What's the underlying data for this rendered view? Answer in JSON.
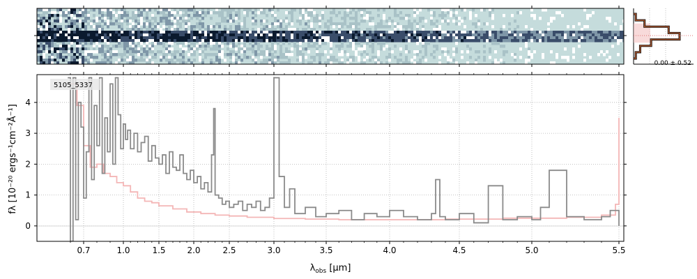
{
  "chart_data": [
    {
      "type": "heatmap",
      "panel": "2d-spectrum",
      "background_color": "#c5dcdc",
      "trace_color": "#0b1a2e",
      "bright_features_um": [
        2.28,
        3.0,
        0.92
      ]
    },
    {
      "type": "line",
      "panel": "1d-spectrum",
      "label": "5105_5337",
      "xlabel": "λobs [μm]",
      "ylabel": "fλ [10⁻²⁰ ergs⁻¹cm⁻²Å⁻¹]",
      "x_ticks": [
        0.7,
        1.0,
        1.5,
        2.0,
        2.5,
        3.0,
        3.5,
        4.0,
        4.5,
        5.0,
        5.5
      ],
      "x_tick_labels": [
        "0.7",
        "1.0",
        "1.5",
        "2.0",
        "2.5",
        "3.0",
        "3.5",
        "4.0",
        "4.5",
        "5.0",
        "5.5"
      ],
      "y_ticks": [
        0,
        1,
        2,
        3,
        4
      ],
      "y_tick_labels": [
        "0",
        "1",
        "2",
        "3",
        "4"
      ],
      "ylim": [
        -0.5,
        4.9
      ],
      "xlim_um": [
        0.55,
        5.52
      ],
      "grid": true,
      "series": [
        {
          "role": "flux",
          "color": "#8a8a8a",
          "x": [
            0.58,
            0.6,
            0.62,
            0.64,
            0.66,
            0.68,
            0.7,
            0.72,
            0.74,
            0.76,
            0.78,
            0.8,
            0.82,
            0.84,
            0.86,
            0.88,
            0.9,
            0.92,
            0.94,
            0.96,
            0.98,
            1.0,
            1.03,
            1.06,
            1.1,
            1.15,
            1.2,
            1.25,
            1.3,
            1.35,
            1.4,
            1.45,
            1.5,
            1.55,
            1.6,
            1.65,
            1.7,
            1.75,
            1.8,
            1.85,
            1.9,
            1.95,
            2.0,
            2.05,
            2.1,
            2.15,
            2.2,
            2.25,
            2.28,
            2.3,
            2.35,
            2.4,
            2.45,
            2.5,
            2.55,
            2.6,
            2.65,
            2.7,
            2.75,
            2.8,
            2.85,
            2.9,
            2.95,
            3.0,
            3.05,
            3.1,
            3.15,
            3.2,
            3.3,
            3.4,
            3.5,
            3.6,
            3.7,
            3.8,
            3.9,
            4.0,
            4.1,
            4.2,
            4.3,
            4.33,
            4.36,
            4.4,
            4.5,
            4.6,
            4.7,
            4.8,
            4.9,
            5.0,
            5.05,
            5.1,
            5.2,
            5.3,
            5.4,
            5.45,
            5.5
          ],
          "y": [
            4.8,
            -0.5,
            4.8,
            0.2,
            4.0,
            3.2,
            0.9,
            2.4,
            4.8,
            1.5,
            3.9,
            2.6,
            4.8,
            1.7,
            3.5,
            2.4,
            4.6,
            2.0,
            4.8,
            3.6,
            2.5,
            3.3,
            2.8,
            3.1,
            2.5,
            3.0,
            2.4,
            2.7,
            2.9,
            2.1,
            2.6,
            2.2,
            2.0,
            2.3,
            1.7,
            2.4,
            1.9,
            1.8,
            2.3,
            1.7,
            1.5,
            1.8,
            1.4,
            1.6,
            1.2,
            1.4,
            1.1,
            2.3,
            3.8,
            1.0,
            0.9,
            0.7,
            0.8,
            0.6,
            0.7,
            0.8,
            0.5,
            0.7,
            0.6,
            0.8,
            0.5,
            0.6,
            0.9,
            4.8,
            1.6,
            0.6,
            1.2,
            0.4,
            0.6,
            0.3,
            0.4,
            0.5,
            0.2,
            0.4,
            0.3,
            0.5,
            0.3,
            0.2,
            0.4,
            1.5,
            0.3,
            0.2,
            0.4,
            0.1,
            1.3,
            0.2,
            0.3,
            0.2,
            0.6,
            1.8,
            0.3,
            0.2,
            0.3,
            0.5,
            0.0
          ]
        },
        {
          "role": "model",
          "color": "#f4b6b6",
          "x": [
            0.6,
            0.65,
            0.7,
            0.75,
            0.8,
            0.85,
            0.9,
            0.95,
            1.0,
            1.1,
            1.2,
            1.3,
            1.4,
            1.5,
            1.7,
            1.9,
            2.1,
            2.3,
            2.5,
            2.7,
            3.0,
            3.3,
            3.6,
            4.0,
            4.4,
            4.8,
            5.2,
            5.4,
            5.48,
            5.5
          ],
          "y": [
            4.6,
            3.9,
            2.6,
            1.9,
            2.0,
            1.7,
            1.6,
            1.4,
            1.3,
            1.1,
            0.9,
            0.8,
            0.75,
            0.65,
            0.55,
            0.45,
            0.4,
            0.35,
            0.32,
            0.28,
            0.24,
            0.22,
            0.2,
            0.2,
            0.22,
            0.25,
            0.28,
            0.35,
            0.7,
            3.5
          ]
        }
      ]
    },
    {
      "type": "bar",
      "panel": "histogram",
      "label": "0.00 ± 0.52",
      "categories": [
        "-3",
        "-2",
        "-1",
        "0",
        "1",
        "2",
        "3"
      ],
      "values": [
        0.1,
        0.5,
        1.6,
        2.1,
        0.8,
        0.3,
        0.1
      ]
    }
  ]
}
